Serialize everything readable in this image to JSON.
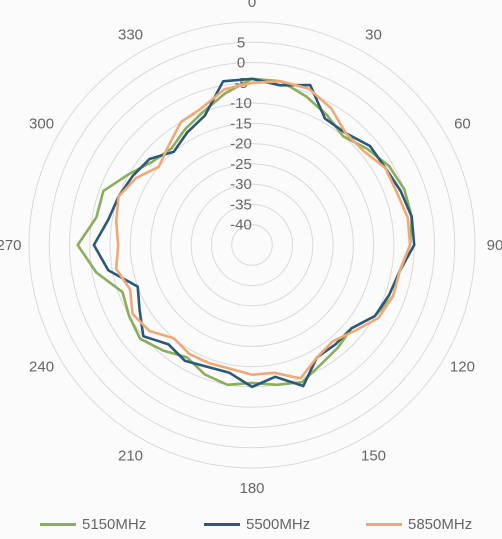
{
  "chart_data": {
    "type": "radar",
    "angle_labels": [
      "0",
      "30",
      "60",
      "90",
      "120",
      "150",
      "180",
      "210",
      "240",
      "270",
      "300",
      "330"
    ],
    "radial_ticks": [
      "5",
      "0",
      "-5",
      "-10",
      "-15",
      "-20",
      "-25",
      "-30",
      "-35",
      "-40"
    ],
    "rlim": [
      -45,
      10
    ],
    "grid": true,
    "legend_position": "bottom",
    "angles": [
      0,
      10,
      20,
      30,
      40,
      50,
      60,
      70,
      80,
      90,
      100,
      110,
      120,
      130,
      140,
      150,
      160,
      170,
      180,
      190,
      200,
      210,
      220,
      230,
      240,
      250,
      260,
      270,
      280,
      290,
      300,
      310,
      320,
      330,
      340,
      350
    ],
    "series": [
      {
        "name": "5150MHz",
        "color": "#8aae5c",
        "values": [
          -4,
          -4,
          -6,
          -8,
          -10,
          -8,
          -6,
          -5,
          -5,
          -6,
          -8,
          -8,
          -10,
          -13,
          -12,
          -11,
          -9,
          -10,
          -11,
          -10,
          -11,
          -13,
          -11,
          -9,
          -10,
          -11,
          -6,
          -2,
          -6,
          -6,
          -10,
          -13,
          -14,
          -12,
          -10,
          -7
        ]
      },
      {
        "name": "5500MHz",
        "color": "#2b5a78",
        "values": [
          -4,
          -5,
          -3,
          -9,
          -9,
          -7,
          -7,
          -6,
          -5,
          -5,
          -8,
          -9,
          -10,
          -13,
          -13,
          -13,
          -8,
          -12,
          -10,
          -13,
          -13,
          -12,
          -13,
          -10,
          -13,
          -15,
          -9,
          -6,
          -9,
          -10,
          -11,
          -12,
          -15,
          -13,
          -11,
          -4
        ]
      },
      {
        "name": "5850MHz",
        "color": "#f0a878",
        "values": [
          -5,
          -4,
          -4,
          -6,
          -9,
          -9,
          -7,
          -7,
          -6,
          -6,
          -8,
          -8,
          -9,
          -12,
          -14,
          -13,
          -10,
          -13,
          -13,
          -14,
          -14,
          -14,
          -15,
          -12,
          -11,
          -13,
          -11,
          -12,
          -11,
          -10,
          -12,
          -15,
          -13,
          -10,
          -9,
          -6
        ]
      }
    ]
  }
}
